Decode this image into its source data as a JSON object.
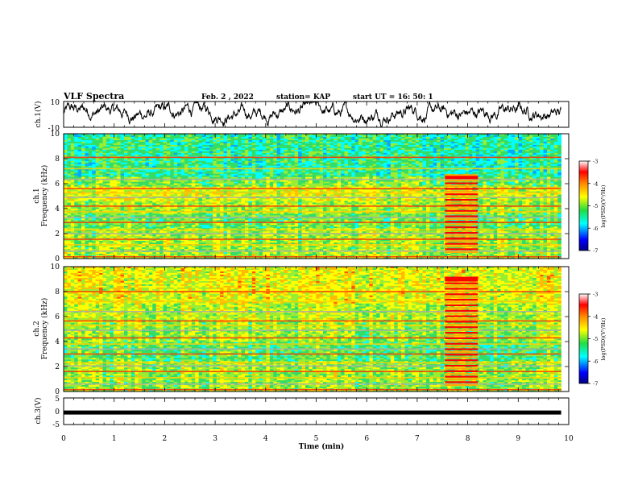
{
  "header": {
    "title": "VLF Spectra",
    "date": "Feb. 2 , 2022",
    "station": "station= KAP",
    "start_ut": "start UT = 16: 50: 1"
  },
  "chart_data": [
    {
      "type": "line",
      "panel": "ch1-waveform",
      "ylabel": "ch.1(V)",
      "ylim": [
        -10,
        10
      ],
      "y_tick_labels": [
        "10",
        "-10"
      ],
      "xlim": [
        0,
        10
      ],
      "description_values": {
        "x_end": 9.85
      }
    },
    {
      "type": "heatmap",
      "panel": "ch1-spectrogram",
      "ylabel": "ch.1\nFrequency (kHz)",
      "ylim": [
        0,
        10
      ],
      "y_tick_labels": [
        "0",
        "2",
        "4",
        "6",
        "8",
        "10"
      ],
      "xlim": [
        0,
        10
      ],
      "burst_interval": [
        7.55,
        8.2
      ],
      "colorbar": {
        "label": "log(PSD)(V²/Hz)",
        "range": [
          -7,
          -3
        ],
        "tick_labels": [
          "-3",
          "-4",
          "-5",
          "-6",
          "-7"
        ]
      }
    },
    {
      "type": "heatmap",
      "panel": "ch2-spectrogram",
      "ylabel": "ch.2\nFrequency (kHz)",
      "ylim": [
        0,
        10
      ],
      "y_tick_labels": [
        "0",
        "2",
        "4",
        "6",
        "8",
        "10"
      ],
      "xlim": [
        0,
        10
      ],
      "burst_interval": [
        7.55,
        8.2
      ],
      "colorbar": {
        "label": "log(PSD)(V²/Hz)",
        "range": [
          -7,
          -3
        ],
        "tick_labels": [
          "-3",
          "-4",
          "-5",
          "-6",
          "-7"
        ]
      }
    },
    {
      "type": "line",
      "panel": "ch3-waveform",
      "ylabel": "ch.3(V)",
      "ylim": [
        -5,
        5
      ],
      "y_tick_labels": [
        "5",
        "0",
        "-5"
      ],
      "xlim": [
        0,
        10
      ],
      "xlabel": "Time (min)",
      "x_tick_labels": [
        "0",
        "1",
        "2",
        "3",
        "4",
        "5",
        "6",
        "7",
        "8",
        "9",
        "10"
      ],
      "level": -0.5,
      "x_end": 9.85
    }
  ],
  "colors": {
    "trace": "#000000",
    "colormap": [
      "#00008b",
      "#0000ff",
      "#00ffff",
      "#22dd55",
      "#ffff00",
      "#ff8800",
      "#ff0000",
      "#ffffff"
    ]
  }
}
